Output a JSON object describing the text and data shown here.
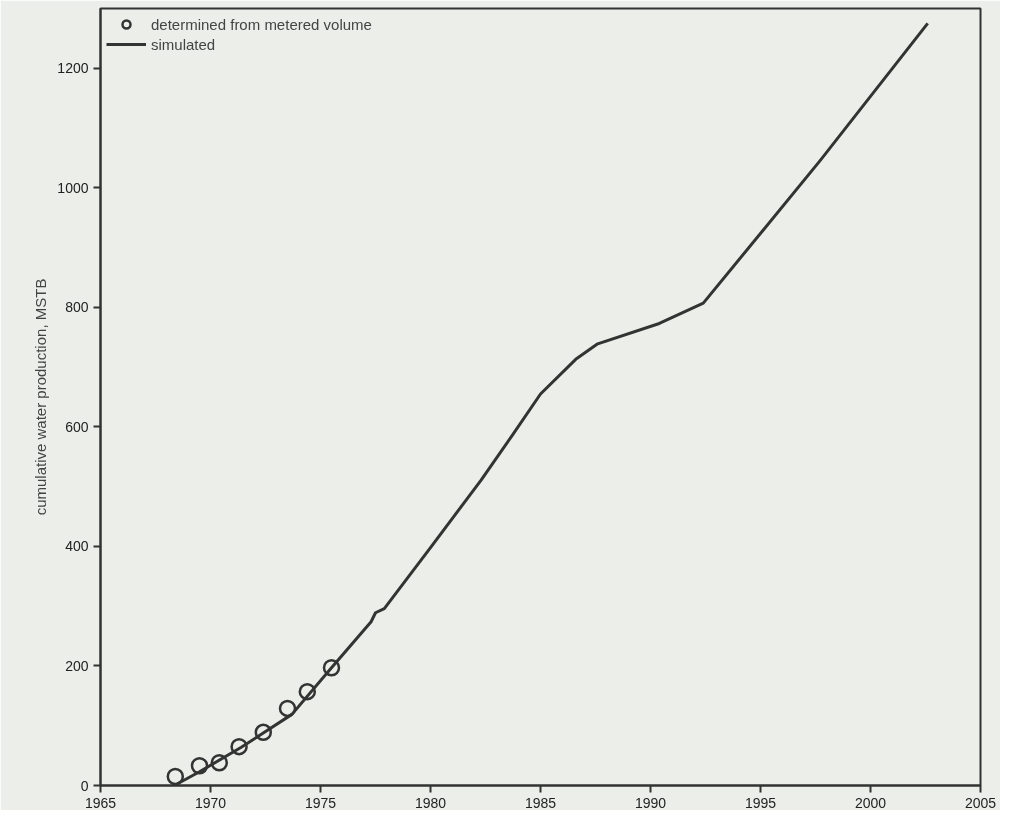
{
  "chart_data": {
    "type": "line",
    "ylabel": "cumulative water production, MSTB",
    "xlim": [
      1965,
      2005
    ],
    "ylim": [
      0,
      1300
    ],
    "xticks": [
      1965,
      1970,
      1975,
      1980,
      1985,
      1990,
      1995,
      2000,
      2005
    ],
    "yticks": [
      0,
      200,
      400,
      600,
      800,
      1000,
      1200
    ],
    "grid": false,
    "legend": "top left",
    "series": [
      {
        "name": "determined from metered volume",
        "type": "scatter",
        "marker": "circle",
        "color": "#333333",
        "x": [
          1968.4,
          1969.5,
          1970.4,
          1971.3,
          1972.4,
          1973.5,
          1974.4,
          1975.5
        ],
        "values": [
          15,
          33,
          38,
          65,
          89,
          129,
          157,
          197
        ]
      },
      {
        "name": "simulated",
        "line_style": "solid",
        "color": "#333333",
        "x": [
          1968.5,
          1969.5,
          1971.4,
          1973.7,
          1975.5,
          1977.3,
          1977.5,
          1977.9,
          1980.0,
          1982.3,
          1983.7,
          1985.0,
          1986.6,
          1987.6,
          1990.4,
          1992.4,
          1997.7,
          2002.6
        ],
        "values": [
          3,
          23,
          64,
          119,
          197,
          274,
          289,
          296,
          398,
          511,
          585,
          655,
          713,
          739,
          773,
          807,
          1045,
          1275
        ]
      }
    ]
  }
}
